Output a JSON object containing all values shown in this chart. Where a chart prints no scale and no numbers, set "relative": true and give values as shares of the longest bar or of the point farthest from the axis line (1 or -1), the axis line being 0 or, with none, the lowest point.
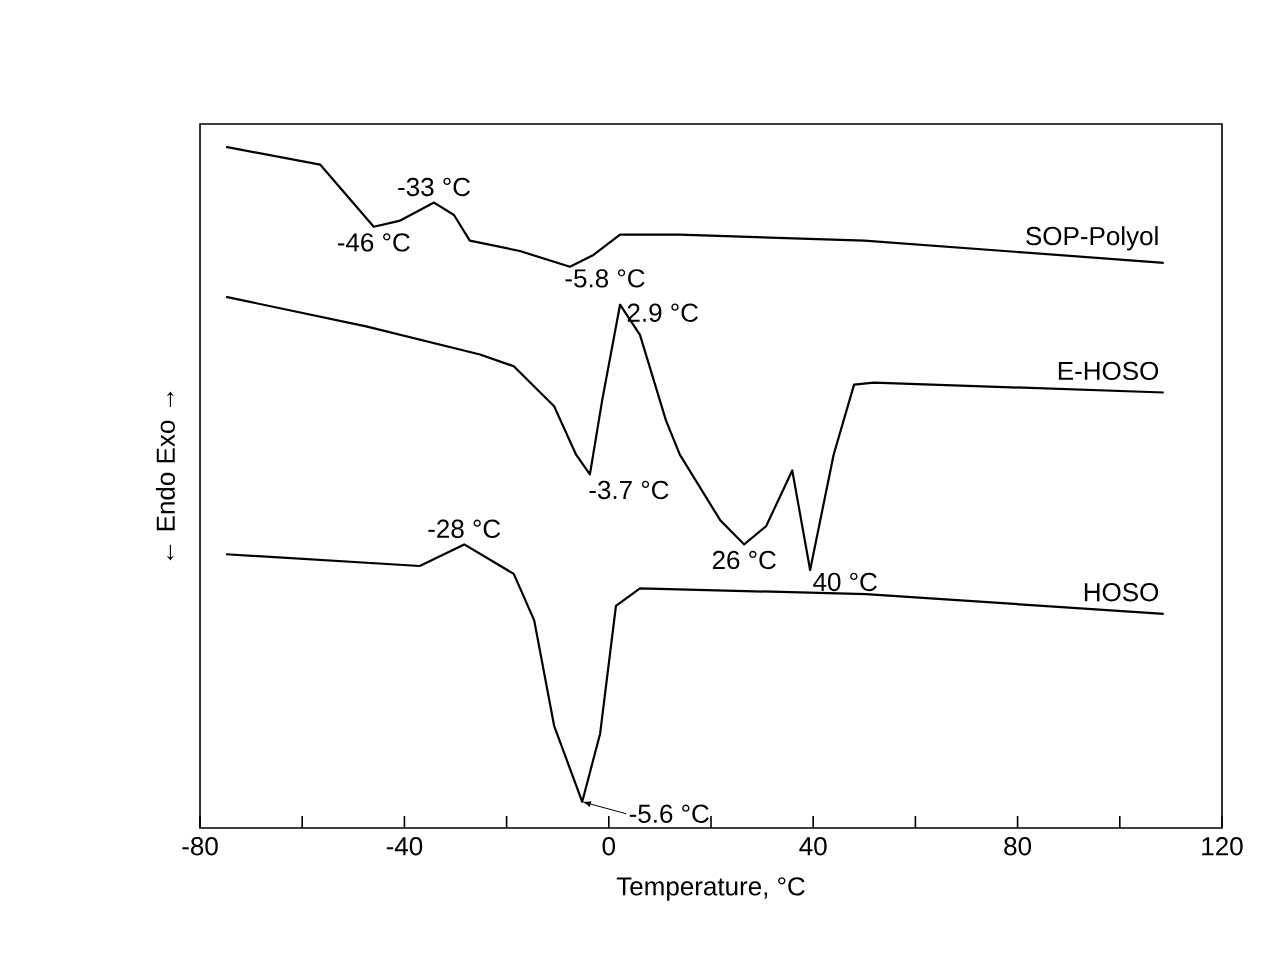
{
  "chart_data": {
    "type": "line",
    "relative": true,
    "xlabel": "Temperature, °C",
    "ylabel": "← Endo        Exo →",
    "xlim": [
      -80,
      120
    ],
    "xticks": [
      -80,
      {
        "value": -60,
        "label": null
      },
      -40,
      {
        "value": -20,
        "label": null
      },
      0,
      {
        "value": 20,
        "label": null
      },
      40,
      {
        "value": 60,
        "label": null
      },
      80,
      {
        "value": 100,
        "label": null
      },
      120
    ],
    "series": [
      {
        "name": "SOP-Polyol",
        "color": "#000000",
        "x": [
          -74.9,
          -56.5,
          -51.4,
          -46,
          -41,
          -34.2,
          -30.3,
          -27.2,
          -17.4,
          -7.6,
          -3,
          2.2,
          13.9,
          50,
          108.6
        ],
        "values": [
          1.0,
          0.973,
          0.927,
          0.878,
          0.887,
          0.915,
          0.896,
          0.857,
          0.841,
          0.817,
          0.835,
          0.866,
          0.866,
          0.857,
          0.823
        ]
      },
      {
        "name": "E-HOSO",
        "color": "#000000",
        "x": [
          -74.9,
          -47.5,
          -25.2,
          -18.6,
          -10.7,
          -6.4,
          -3.7,
          -1.3,
          2.2,
          6.1,
          11.2,
          13.9,
          21.8,
          26.5,
          30.8,
          35.9,
          39.4,
          44,
          48,
          51.9,
          108.6
        ],
        "values": [
          0.771,
          0.726,
          0.683,
          0.665,
          0.604,
          0.53,
          0.5,
          0.613,
          0.759,
          0.713,
          0.582,
          0.53,
          0.43,
          0.393,
          0.421,
          0.506,
          0.354,
          0.53,
          0.637,
          0.64,
          0.625
        ]
      },
      {
        "name": "HOSO",
        "color": "#000000",
        "x": [
          -74.9,
          -37,
          -28.3,
          -18.6,
          -14.6,
          -10.7,
          -5.2,
          -1.7,
          1.4,
          6.1,
          50.3,
          108.6
        ],
        "values": [
          0.378,
          0.36,
          0.393,
          0.348,
          0.277,
          0.116,
          0.0,
          0.104,
          0.299,
          0.326,
          0.317,
          0.287
        ]
      }
    ],
    "annotations": [
      {
        "text": "-46 °C",
        "x": -46,
        "y": 0.878
      },
      {
        "text": "-33 °C",
        "x": -34.2,
        "y": 0.915
      },
      {
        "text": "-5.8 °C",
        "x": -7.6,
        "y": 0.817
      },
      {
        "text": "2.9 °C",
        "x": 2.2,
        "y": 0.759
      },
      {
        "text": "-3.7 °C",
        "x": -3.7,
        "y": 0.5
      },
      {
        "text": "26 °C",
        "x": 26.5,
        "y": 0.393
      },
      {
        "text": "40 °C",
        "x": 39.4,
        "y": 0.354
      },
      {
        "text": "-28 °C",
        "x": -28.3,
        "y": 0.393
      },
      {
        "text": "-5.6 °C",
        "x": -5.2,
        "y": 0.0
      }
    ]
  }
}
